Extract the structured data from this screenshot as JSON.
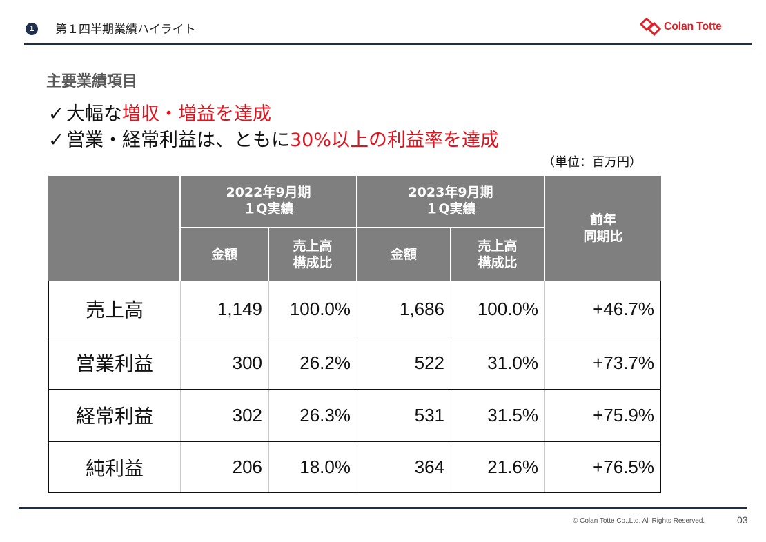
{
  "header": {
    "section_number": "1",
    "section_title": "第１四半期業績ハイライト",
    "logo_text": "Colan Totte",
    "logo_color": "#d9222a",
    "rule_color": "#1e2f4d"
  },
  "main": {
    "subtitle": "主要業績項目",
    "bullets": [
      {
        "check": "✓",
        "prefix": "大幅な",
        "highlight": "増収・増益を達成",
        "suffix": ""
      },
      {
        "check": "✓",
        "prefix": "営業・経常利益は、ともに",
        "highlight": "30%以上の利益率を達成",
        "suffix": ""
      }
    ],
    "highlight_color": "#e0141e",
    "unit_note": "（単位：百万円）"
  },
  "table": {
    "header_bg": "#7f7f7f",
    "period_1": {
      "line1": "2022年9月期",
      "line2": "１Q実績"
    },
    "period_2": {
      "line1": "2023年9月期",
      "line2": "１Q実績"
    },
    "yoy": {
      "line1": "前年",
      "line2": "同期比"
    },
    "sub_amount": "金額",
    "sub_ratio": {
      "line1": "売上高",
      "line2": "構成比"
    },
    "rows": [
      {
        "label": "売上高",
        "amount_2022": "1,149",
        "ratio_2022": "100.0%",
        "amount_2023": "1,686",
        "ratio_2023": "100.0%",
        "yoy": "+46.7%"
      },
      {
        "label": "営業利益",
        "amount_2022": "300",
        "ratio_2022": "26.2%",
        "amount_2023": "522",
        "ratio_2023": "31.0%",
        "yoy": "+73.7%"
      },
      {
        "label": "経常利益",
        "amount_2022": "302",
        "ratio_2022": "26.3%",
        "amount_2023": "531",
        "ratio_2023": "31.5%",
        "yoy": "+75.9%"
      },
      {
        "label": "純利益",
        "amount_2022": "206",
        "ratio_2022": "18.0%",
        "amount_2023": "364",
        "ratio_2023": "21.6%",
        "yoy": "+76.5%"
      }
    ]
  },
  "footer": {
    "copyright": "© Colan Totte Co.,Ltd. All Rights Reserved.",
    "page_number": "03"
  }
}
